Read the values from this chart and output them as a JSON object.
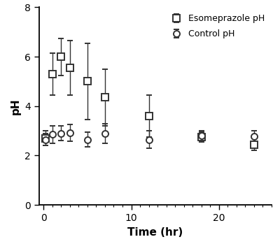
{
  "title": "",
  "xlabel": "Time (hr)",
  "ylabel": "pH",
  "xlim": [
    -0.5,
    26
  ],
  "ylim": [
    0,
    8
  ],
  "yticks": [
    0,
    2,
    4,
    6,
    8
  ],
  "xticks": [
    0,
    10,
    20
  ],
  "background_color": "#ffffff",
  "esomeprazole": {
    "label": "Esomeprazole pH",
    "x": [
      0.25,
      1.0,
      2.0,
      3.0,
      5.0,
      7.0,
      12.0,
      18.0,
      24.0
    ],
    "y": [
      2.7,
      5.3,
      6.0,
      5.55,
      5.0,
      4.35,
      3.6,
      2.75,
      2.45
    ],
    "yerr_lo": [
      0.3,
      0.85,
      0.75,
      1.1,
      1.55,
      1.15,
      0.85,
      0.2,
      0.25
    ],
    "yerr_hi": [
      0.3,
      0.85,
      0.75,
      1.1,
      1.55,
      1.15,
      0.85,
      0.2,
      0.25
    ],
    "marker": "s",
    "color": "#333333"
  },
  "control": {
    "label": "Control pH",
    "x": [
      0.25,
      1.0,
      2.0,
      3.0,
      5.0,
      7.0,
      12.0,
      18.0,
      24.0
    ],
    "y": [
      2.65,
      2.85,
      2.9,
      2.92,
      2.65,
      2.9,
      2.65,
      2.82,
      2.78
    ],
    "yerr_lo": [
      0.25,
      0.35,
      0.3,
      0.35,
      0.3,
      0.4,
      0.35,
      0.18,
      0.22
    ],
    "yerr_hi": [
      0.25,
      0.35,
      0.3,
      0.35,
      0.3,
      0.4,
      0.35,
      0.18,
      0.22
    ],
    "marker": "o",
    "color": "#333333"
  },
  "figsize": [
    4.0,
    3.49
  ],
  "dpi": 100
}
